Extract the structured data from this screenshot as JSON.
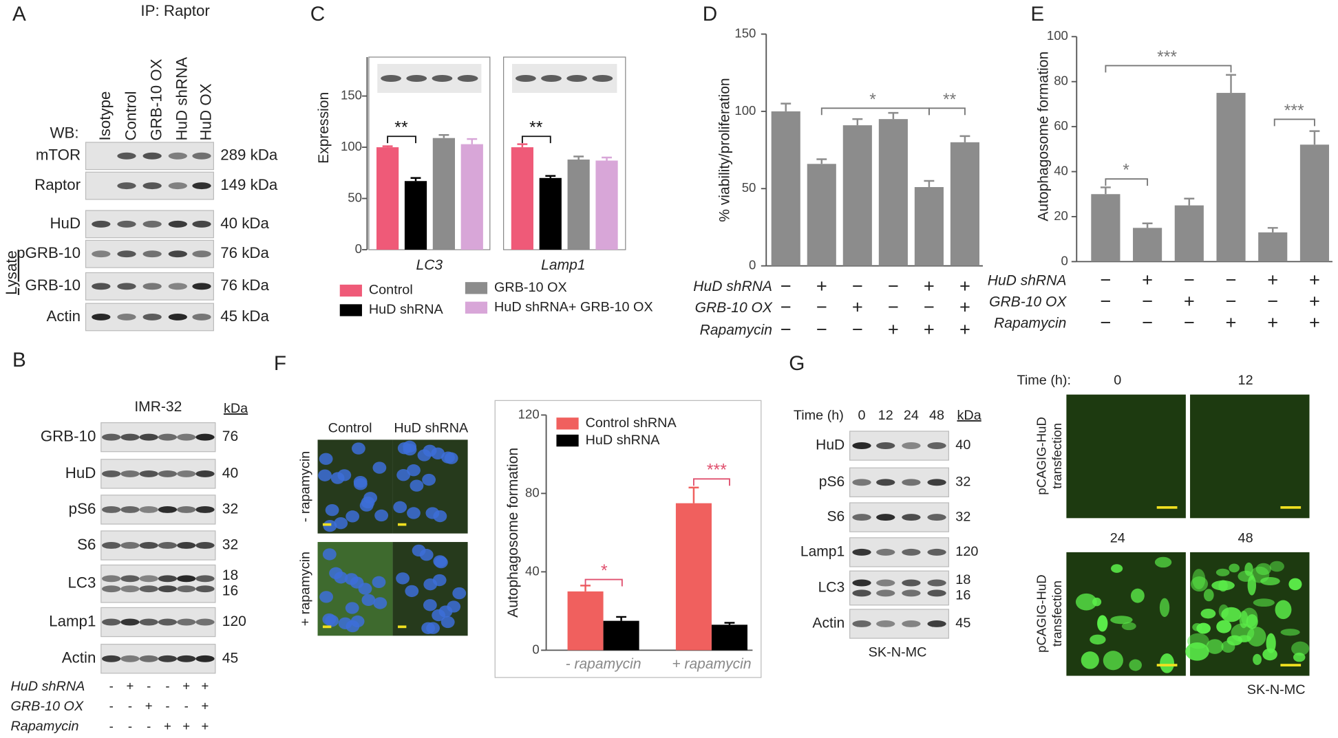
{
  "panels": {
    "A": {
      "letter": "A",
      "ip": "IP: Raptor",
      "wb": "WB:",
      "lanes": [
        "Isotype",
        "Control",
        "GRB-10 OX",
        "HuD shRNA",
        "HuD OX"
      ],
      "rows": [
        {
          "label": "mTOR",
          "kda": "289 kDa"
        },
        {
          "label": "Raptor",
          "kda": "149 kDa"
        },
        {
          "label": "HuD",
          "kda": "40 kDa"
        },
        {
          "label": "pGRB-10",
          "kda": "76 kDa"
        },
        {
          "label": "GRB-10",
          "kda": "76 kDa"
        },
        {
          "label": "Actin",
          "kda": "45 kDa"
        }
      ],
      "lysate": "Lysate"
    },
    "B": {
      "letter": "B",
      "cell_line": "IMR-32",
      "kda_header": "kDa",
      "rows": [
        {
          "label": "GRB-10",
          "kda": [
            "76"
          ]
        },
        {
          "label": "HuD",
          "kda": [
            "40"
          ]
        },
        {
          "label": "pS6",
          "kda": [
            "32"
          ]
        },
        {
          "label": "S6",
          "kda": [
            "32"
          ]
        },
        {
          "label": "LC3",
          "kda": [
            "18",
            "16"
          ]
        },
        {
          "label": "Lamp1",
          "kda": [
            "120"
          ]
        },
        {
          "label": "Actin",
          "kda": [
            "45"
          ]
        }
      ],
      "conditions": [
        {
          "label": "HuD shRNA",
          "signs": [
            "-",
            "+",
            "-",
            "-",
            "+",
            "+"
          ]
        },
        {
          "label": "GRB-10 OX",
          "signs": [
            "-",
            "-",
            "+",
            "-",
            "-",
            "+"
          ]
        },
        {
          "label": "Rapamycin",
          "signs": [
            "-",
            "-",
            "-",
            "+",
            "+",
            "+"
          ]
        }
      ]
    },
    "F": {
      "letter": "F",
      "columns": [
        "Control",
        "HuD shRNA"
      ],
      "rows": [
        "- rapamycin",
        "+ rapamycin"
      ]
    },
    "G": {
      "letter": "G",
      "time_header": "Time (h)",
      "times": [
        "0",
        "12",
        "24",
        "48"
      ],
      "kda_header": "kDa",
      "rows": [
        {
          "label": "HuD",
          "kda": [
            "40"
          ]
        },
        {
          "label": "pS6",
          "kda": [
            "32"
          ]
        },
        {
          "label": "S6",
          "kda": [
            "32"
          ]
        },
        {
          "label": "Lamp1",
          "kda": [
            "120"
          ]
        },
        {
          "label": "LC3",
          "kda": [
            "18",
            "16"
          ]
        },
        {
          "label": "Actin",
          "kda": [
            "45"
          ]
        }
      ],
      "cell_line": "SK-N-MC",
      "image_time_header": "Time (h):",
      "image_times": [
        "0",
        "12",
        "24",
        "48"
      ],
      "image_rows": [
        [
          "pCAGIG-HuD",
          "transfection"
        ],
        [
          "pCAGIG-HuD",
          "transfection"
        ]
      ],
      "image_cell_line": "SK-N-MC"
    }
  },
  "chart_data": [
    {
      "panel": "C",
      "type": "bar",
      "ylabel": "Expression",
      "categories": [
        "LC3",
        "Lamp1"
      ],
      "series": [
        {
          "name": "Control",
          "color": "#ef5a78",
          "values": [
            100,
            100
          ],
          "errors": [
            1,
            3
          ]
        },
        {
          "name": "HuD shRNA",
          "color": "#000000",
          "values": [
            67,
            70
          ],
          "errors": [
            3,
            2
          ]
        },
        {
          "name": "GRB-10 OX",
          "color": "#8c8c8c",
          "values": [
            109,
            88
          ],
          "errors": [
            3,
            3
          ]
        },
        {
          "name": "HuD shRNA+ GRB-10 OX",
          "color": "#d8a6d8",
          "values": [
            103,
            87
          ],
          "errors": [
            5,
            3
          ]
        }
      ],
      "ylim": [
        0,
        188
      ],
      "yticks": [
        0,
        50,
        100,
        150
      ],
      "legend": "bottom",
      "annotations": [
        "**",
        "**"
      ]
    },
    {
      "panel": "D",
      "type": "bar",
      "ylabel": "% viability/proliferation",
      "color": "#8c8c8c",
      "values": [
        100,
        66,
        91,
        95,
        51,
        80
      ],
      "errors": [
        5,
        3,
        4,
        4,
        4,
        4
      ],
      "ylim": [
        0,
        150
      ],
      "yticks": [
        0,
        50,
        100,
        150
      ],
      "conditions": [
        {
          "label": "HuD shRNA",
          "signs": [
            "−",
            "+",
            "−",
            "−",
            "+",
            "+"
          ]
        },
        {
          "label": "GRB-10 OX",
          "signs": [
            "−",
            "−",
            "+",
            "−",
            "−",
            "+"
          ]
        },
        {
          "label": "Rapamycin",
          "signs": [
            "−",
            "−",
            "−",
            "+",
            "+",
            "+"
          ]
        }
      ],
      "annotations": [
        "*",
        "**"
      ]
    },
    {
      "panel": "E",
      "type": "bar",
      "ylabel": "Autophagosome formation",
      "color": "#8c8c8c",
      "values": [
        30,
        15,
        25,
        75,
        13,
        52
      ],
      "errors": [
        3,
        2,
        3,
        8,
        2,
        6
      ],
      "ylim": [
        0,
        100
      ],
      "yticks": [
        0,
        20,
        40,
        60,
        80,
        100
      ],
      "conditions": [
        {
          "label": "HuD shRNA",
          "signs": [
            "−",
            "+",
            "−",
            "−",
            "+",
            "+"
          ]
        },
        {
          "label": "GRB-10 OX",
          "signs": [
            "−",
            "−",
            "+",
            "−",
            "−",
            "+"
          ]
        },
        {
          "label": "Rapamycin",
          "signs": [
            "−",
            "−",
            "−",
            "+",
            "+",
            "+"
          ]
        }
      ],
      "annotations": [
        "***",
        "*",
        "***"
      ]
    },
    {
      "panel": "F",
      "type": "bar",
      "ylabel": "Autophagosome formation",
      "categories": [
        "- rapamycin",
        "+ rapamycin"
      ],
      "series": [
        {
          "name": "Control shRNA",
          "color": "#f0605e",
          "values": [
            30,
            75
          ],
          "errors": [
            3,
            8
          ]
        },
        {
          "name": "HuD shRNA",
          "color": "#000000",
          "values": [
            15,
            13
          ],
          "errors": [
            2,
            1
          ]
        }
      ],
      "ylim": [
        0,
        120
      ],
      "yticks": [
        0,
        40,
        80,
        120
      ],
      "legend": "top-left",
      "annotations": [
        "*",
        "***"
      ]
    }
  ]
}
